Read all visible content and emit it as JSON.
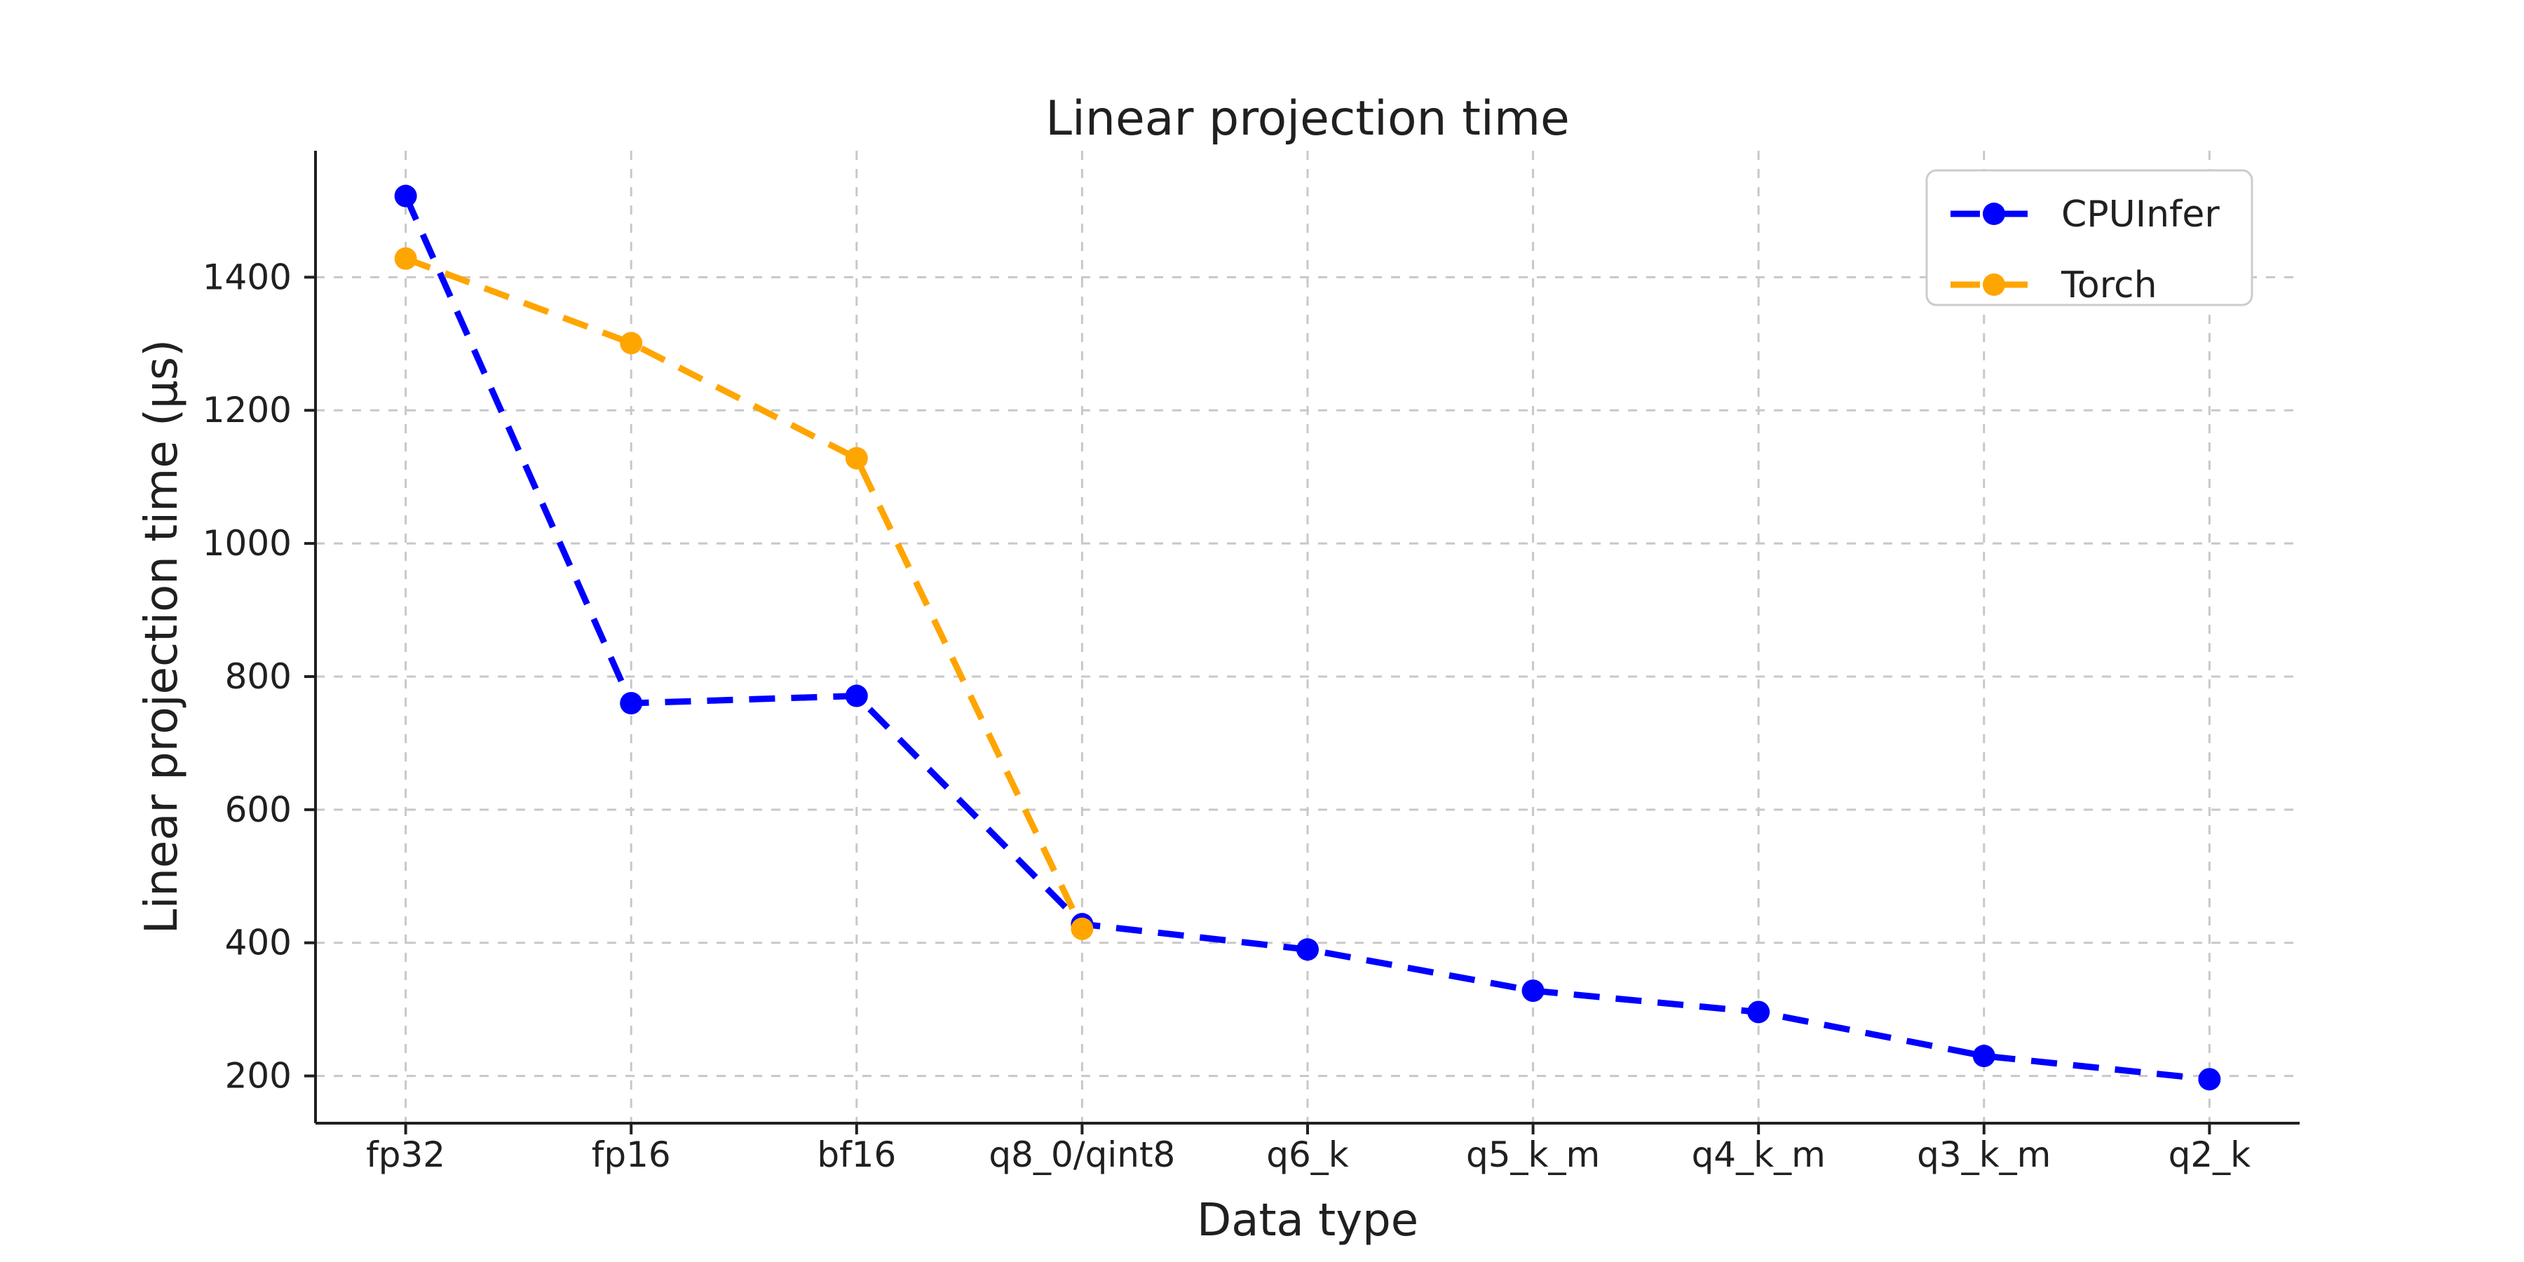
{
  "chart_data": {
    "type": "line",
    "title": "Linear projection time",
    "xlabel": "Data type",
    "ylabel": "Linear projection time (μs)",
    "categories": [
      "fp32",
      "fp16",
      "bf16",
      "q8_0/qint8",
      "q6_k",
      "q5_k_m",
      "q4_k_m",
      "q3_k_m",
      "q2_k"
    ],
    "series": [
      {
        "name": "CPUInfer",
        "color": "#0000ff",
        "values": [
          1522,
          760,
          771,
          428,
          390,
          328,
          296,
          230,
          195
        ]
      },
      {
        "name": "Torch",
        "color": "#ffa500",
        "values": [
          1428,
          1301,
          1128,
          421
        ]
      }
    ],
    "yticks": [
      200,
      400,
      600,
      800,
      1000,
      1200,
      1400
    ],
    "ylim": [
      129,
      1590
    ],
    "grid": true,
    "grid_style": "dashed",
    "line_style": "dashed",
    "marker": "circle",
    "marker_radius": 16,
    "legend_position": "upper right"
  },
  "colors": {
    "background": "#ffffff",
    "text": "#202020",
    "grid": "#c8c8c8",
    "spine": "#202020",
    "legend_border": "#cccccc",
    "cpuinfer_blue": "#0000ff",
    "torch_orange": "#ffa500"
  }
}
